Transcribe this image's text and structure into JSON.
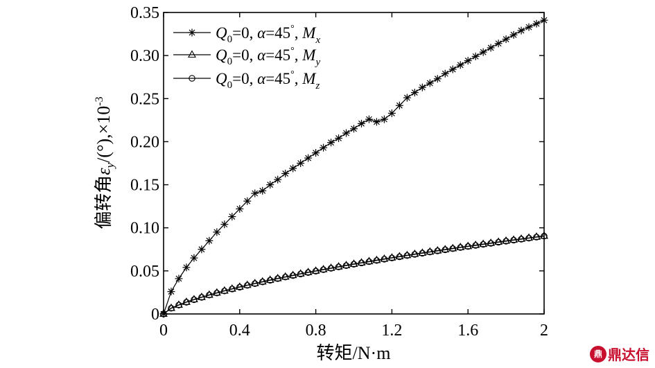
{
  "chart_data": {
    "type": "line",
    "xlabel": "转矩/N·m",
    "ylabel_prefix": "偏转角",
    "ylabel_symbol": "ε",
    "ylabel_sub": "y",
    "ylabel_suffix": "/(°),×10",
    "ylabel_exp": "-3",
    "xlim": [
      0,
      2
    ],
    "ylim": [
      0,
      0.35
    ],
    "x_ticks": [
      0,
      0.4,
      0.8,
      1.2,
      1.6,
      2
    ],
    "x_tick_labels": [
      "0",
      "0.4",
      "0.8",
      "1.2",
      "1.6",
      "2"
    ],
    "y_ticks": [
      0,
      0.05,
      0.1,
      0.15,
      0.2,
      0.25,
      0.3,
      0.35
    ],
    "y_tick_labels": [
      "0",
      "0.05",
      "0.10",
      "0.15",
      "0.20",
      "0.25",
      "0.30",
      "0.35"
    ],
    "grid": false,
    "legend_position": "top-left",
    "legend": [
      {
        "prefix": "Q",
        "prefix_sub": "0",
        "mid": "=0, ",
        "alpha": "α",
        "angle": "=45",
        "deg": "°",
        "sep": ", ",
        "m": "M",
        "m_sub": "x",
        "marker": "star"
      },
      {
        "prefix": "Q",
        "prefix_sub": "0",
        "mid": "=0, ",
        "alpha": "α",
        "angle": "=45",
        "deg": "°",
        "sep": ", ",
        "m": "M",
        "m_sub": "y",
        "marker": "triangle"
      },
      {
        "prefix": "Q",
        "prefix_sub": "0",
        "mid": "=0, ",
        "alpha": "α",
        "angle": "=45",
        "deg": "°",
        "sep": ", ",
        "m": "M",
        "m_sub": "z",
        "marker": "circle"
      }
    ],
    "x": [
      0,
      0.04,
      0.08,
      0.12,
      0.16,
      0.2,
      0.24,
      0.28,
      0.32,
      0.36,
      0.4,
      0.44,
      0.48,
      0.52,
      0.56,
      0.6,
      0.64,
      0.68,
      0.72,
      0.76,
      0.8,
      0.84,
      0.88,
      0.92,
      0.96,
      1.0,
      1.04,
      1.08,
      1.12,
      1.16,
      1.2,
      1.24,
      1.28,
      1.32,
      1.36,
      1.4,
      1.44,
      1.48,
      1.52,
      1.56,
      1.6,
      1.64,
      1.68,
      1.72,
      1.76,
      1.8,
      1.84,
      1.88,
      1.92,
      1.96,
      2.0
    ],
    "series": [
      {
        "values": [
          0.0,
          0.026,
          0.041,
          0.054,
          0.065,
          0.075,
          0.085,
          0.095,
          0.104,
          0.113,
          0.122,
          0.131,
          0.14,
          0.143,
          0.15,
          0.156,
          0.163,
          0.169,
          0.175,
          0.181,
          0.187,
          0.193,
          0.199,
          0.204,
          0.21,
          0.215,
          0.221,
          0.226,
          0.223,
          0.226,
          0.233,
          0.242,
          0.251,
          0.257,
          0.263,
          0.268,
          0.273,
          0.279,
          0.284,
          0.289,
          0.294,
          0.299,
          0.304,
          0.309,
          0.314,
          0.319,
          0.324,
          0.329,
          0.333,
          0.337,
          0.341
        ]
      },
      {
        "values": [
          0.0,
          0.0068,
          0.0105,
          0.0138,
          0.0168,
          0.0195,
          0.0221,
          0.0246,
          0.0269,
          0.0292,
          0.0314,
          0.0335,
          0.0355,
          0.0375,
          0.0394,
          0.0413,
          0.0431,
          0.0449,
          0.0467,
          0.0484,
          0.05,
          0.0517,
          0.0533,
          0.0549,
          0.0564,
          0.058,
          0.0595,
          0.061,
          0.0624,
          0.0639,
          0.0653,
          0.0667,
          0.0681,
          0.0695,
          0.0708,
          0.0722,
          0.0735,
          0.0748,
          0.0761,
          0.0774,
          0.0786,
          0.0799,
          0.0811,
          0.0823,
          0.0836,
          0.0848,
          0.086,
          0.0871,
          0.0883,
          0.0895,
          0.0906
        ]
      },
      {
        "values": [
          0.0,
          0.0066,
          0.0103,
          0.0136,
          0.0166,
          0.0193,
          0.0219,
          0.0243,
          0.0267,
          0.029,
          0.0311,
          0.0332,
          0.0352,
          0.0372,
          0.0391,
          0.041,
          0.0428,
          0.0446,
          0.0464,
          0.0481,
          0.0497,
          0.0514,
          0.053,
          0.0546,
          0.0561,
          0.0577,
          0.0592,
          0.0607,
          0.0621,
          0.0636,
          0.065,
          0.0664,
          0.0678,
          0.0692,
          0.0705,
          0.0719,
          0.0732,
          0.0745,
          0.0758,
          0.0771,
          0.0783,
          0.0796,
          0.0808,
          0.082,
          0.0833,
          0.0845,
          0.0857,
          0.0868,
          0.088,
          0.0892,
          0.0903
        ]
      }
    ]
  },
  "watermark": {
    "logo": "鼎",
    "text": "鼎达信"
  }
}
